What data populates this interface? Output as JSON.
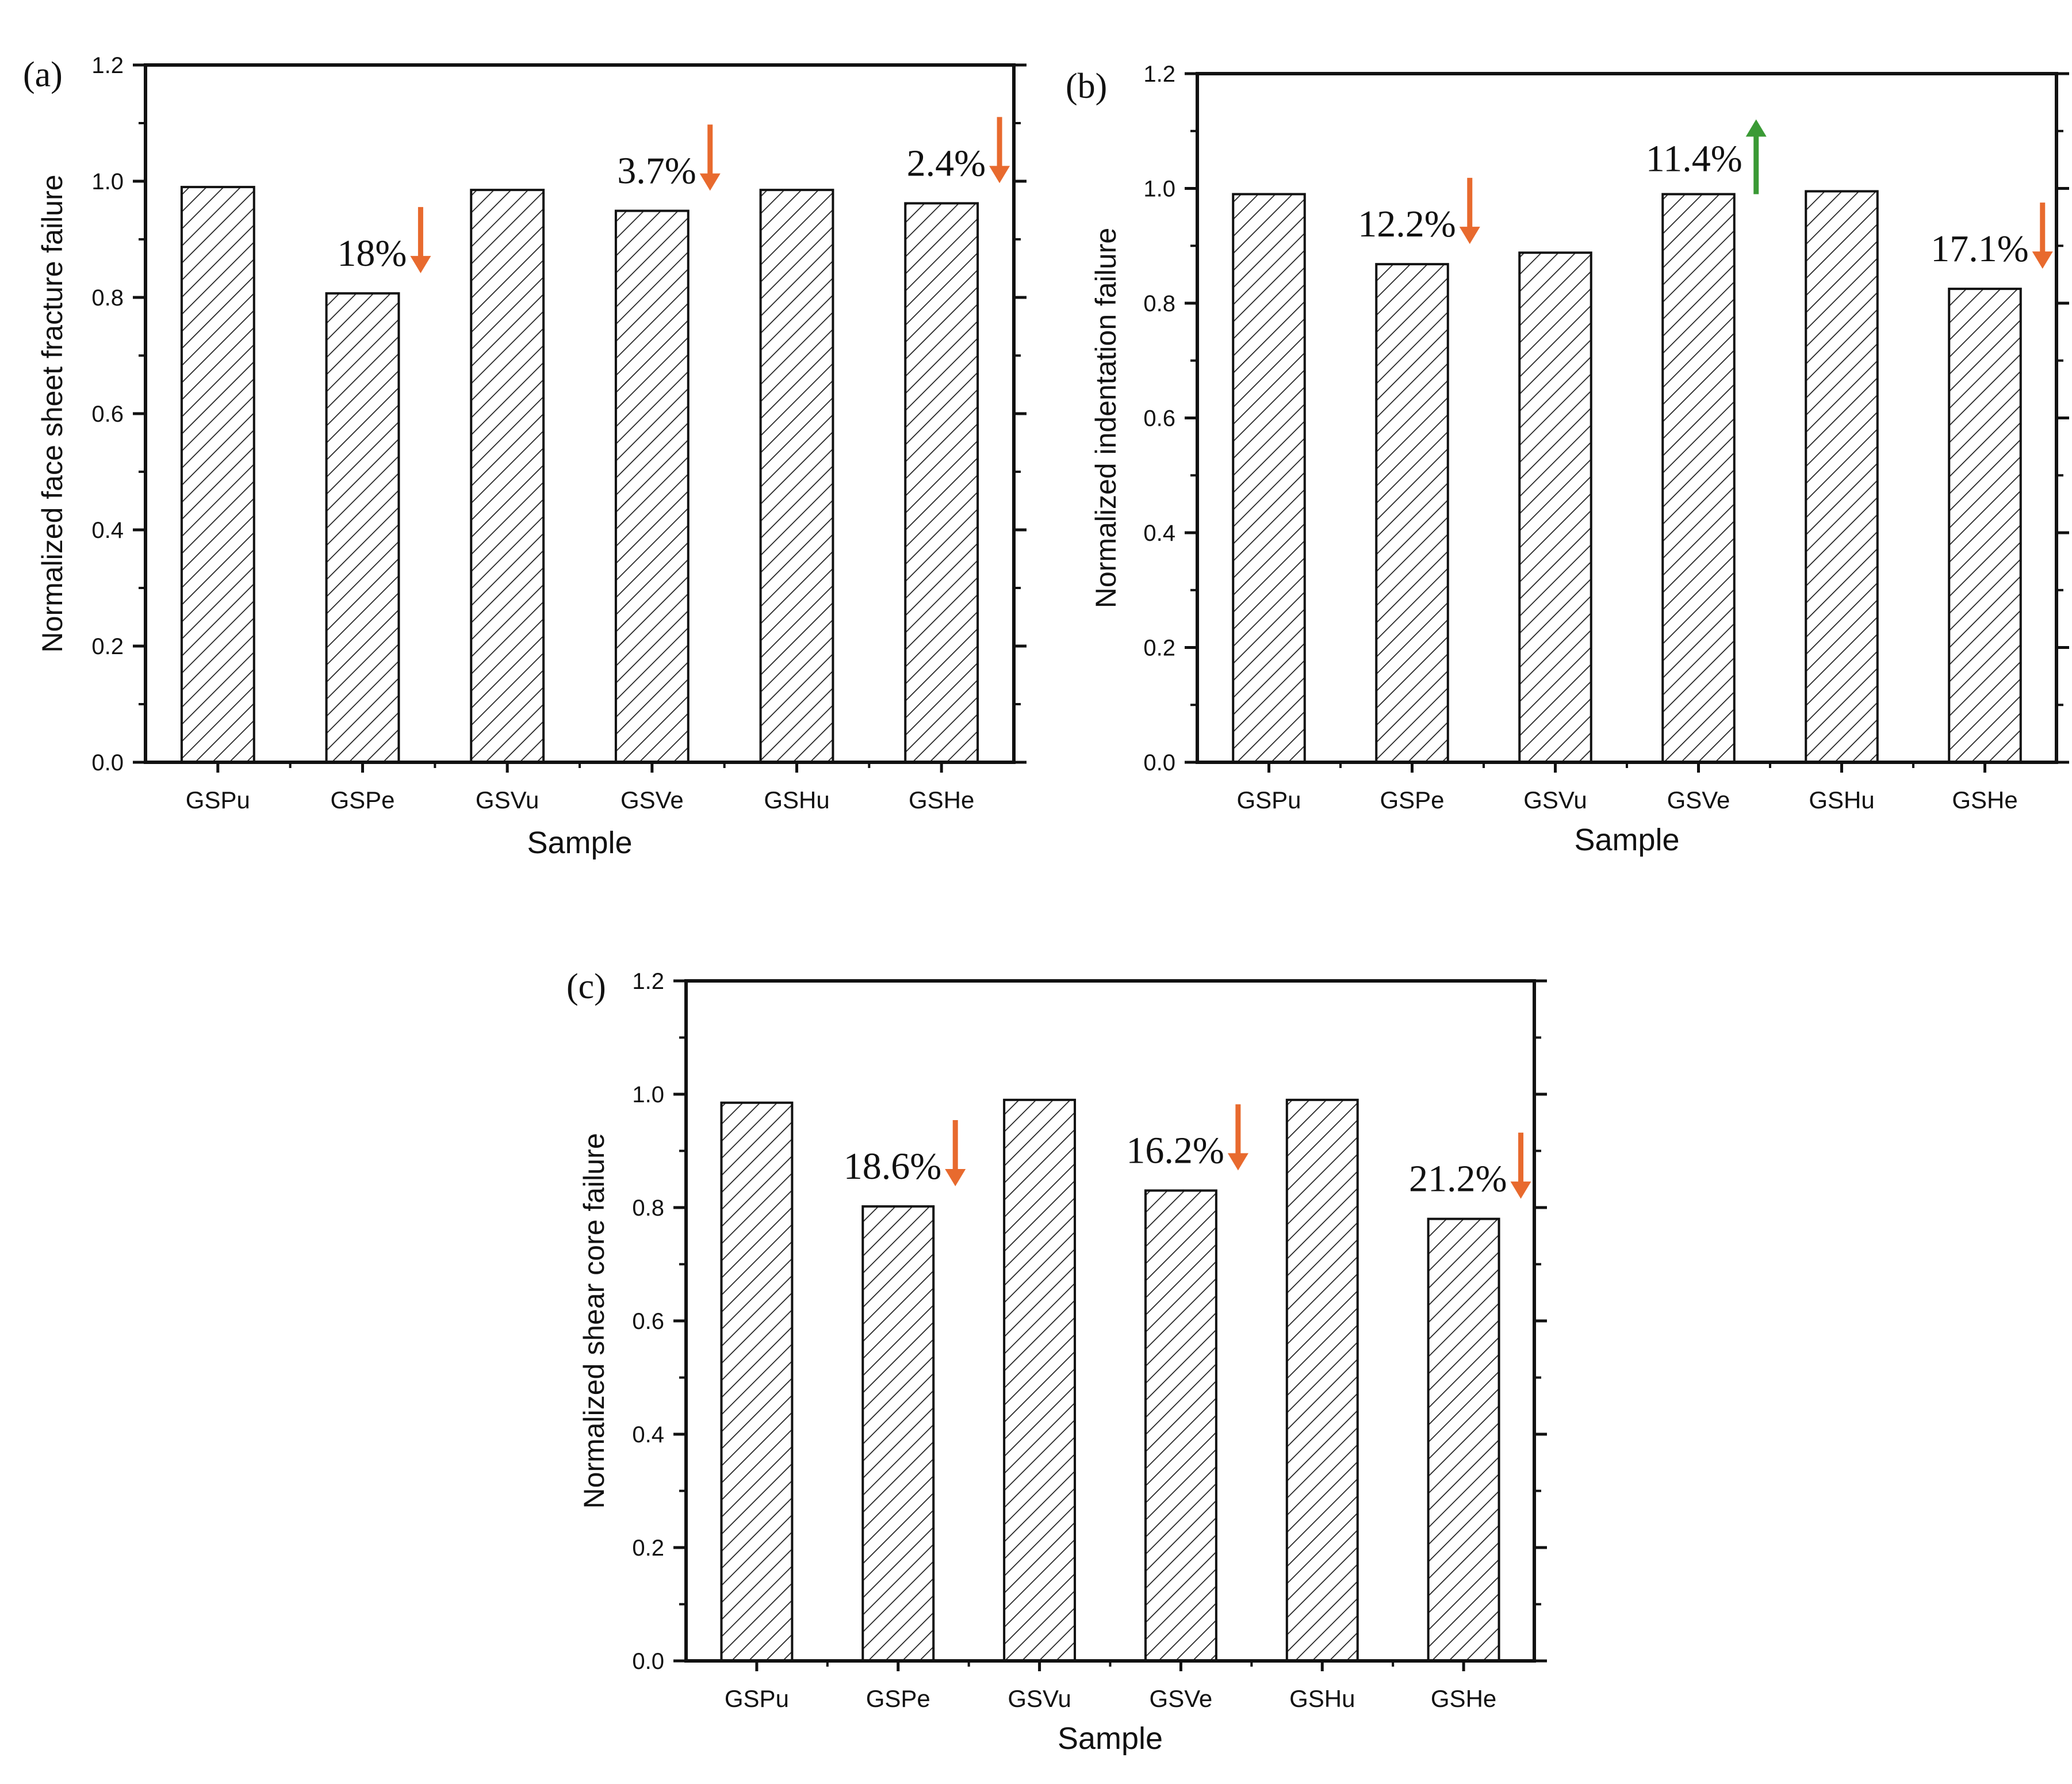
{
  "figure": {
    "colors": {
      "up": "#3a9a35",
      "down": "#e86a2e",
      "bar_fill": "#ffffff",
      "hatch": "#222222",
      "axis": "#111111"
    }
  },
  "chart_data": [
    {
      "type": "bar",
      "panel_label": "(a)",
      "title": "",
      "xlabel": "Sample",
      "ylabel": "Normalized face sheet fracture failure",
      "categories": [
        "GSPu",
        "GSPe",
        "GSVu",
        "GSVe",
        "GSHu",
        "GSHe"
      ],
      "values": [
        0.99,
        0.807,
        0.985,
        0.949,
        0.985,
        0.962
      ],
      "ylim": [
        0,
        1.2
      ],
      "yticks": [
        "0.0",
        "0.2",
        "0.4",
        "0.6",
        "0.8",
        "1.0",
        "1.2"
      ],
      "annotations": [
        {
          "category": "GSPe",
          "text": "18%",
          "direction": "down"
        },
        {
          "category": "GSVe",
          "text": "3.7%",
          "direction": "down"
        },
        {
          "category": "GSHe",
          "text": "2.4%",
          "direction": "down"
        }
      ]
    },
    {
      "type": "bar",
      "panel_label": "(b)",
      "title": "",
      "xlabel": "Sample",
      "ylabel": "Normalized indentation failure",
      "categories": [
        "GSPu",
        "GSPe",
        "GSVu",
        "GSVe",
        "GSHu",
        "GSHe"
      ],
      "values": [
        0.99,
        0.868,
        0.888,
        0.99,
        0.995,
        0.825
      ],
      "ylim": [
        0,
        1.2
      ],
      "yticks": [
        "0.0",
        "0.2",
        "0.4",
        "0.6",
        "0.8",
        "1.0",
        "1.2"
      ],
      "annotations": [
        {
          "category": "GSPe",
          "text": "12.2%",
          "direction": "down"
        },
        {
          "category": "GSVe",
          "text": "11.4%",
          "direction": "up"
        },
        {
          "category": "GSHe",
          "text": "17.1%",
          "direction": "down"
        }
      ]
    },
    {
      "type": "bar",
      "panel_label": "(c)",
      "title": "",
      "xlabel": "Sample",
      "ylabel": "Normalized shear core failure",
      "categories": [
        "GSPu",
        "GSPe",
        "GSVu",
        "GSVe",
        "GSHu",
        "GSHe"
      ],
      "values": [
        0.985,
        0.802,
        0.99,
        0.83,
        0.99,
        0.78
      ],
      "ylim": [
        0,
        1.2
      ],
      "yticks": [
        "0.0",
        "0.2",
        "0.4",
        "0.6",
        "0.8",
        "1.0",
        "1.2"
      ],
      "annotations": [
        {
          "category": "GSPe",
          "text": "18.6%",
          "direction": "down"
        },
        {
          "category": "GSVe",
          "text": "16.2%",
          "direction": "down"
        },
        {
          "category": "GSHe",
          "text": "21.2%",
          "direction": "down"
        }
      ]
    }
  ]
}
